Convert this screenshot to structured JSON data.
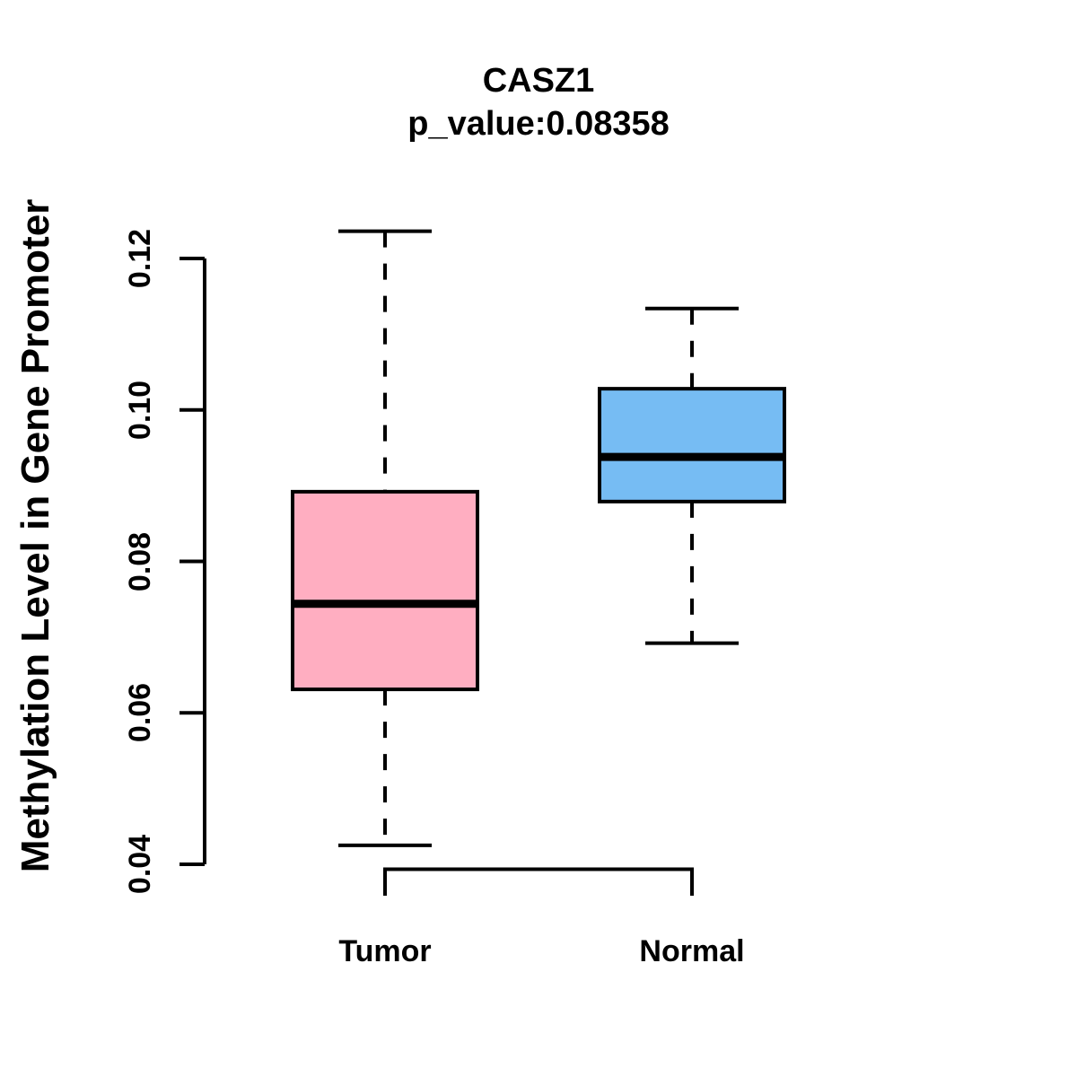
{
  "chart_data": {
    "type": "boxplot",
    "title": "CASZ1",
    "subtitle": "p_value:0.08358",
    "ylabel": "Methylation Level in Gene Promoter",
    "xlabel": "",
    "ylim": [
      0.04,
      0.12
    ],
    "yticks": [
      0.04,
      0.06,
      0.08,
      0.1,
      0.12
    ],
    "ytick_labels": [
      "0.04",
      "0.06",
      "0.08",
      "0.10",
      "0.12"
    ],
    "categories": [
      "Tumor",
      "Normal"
    ],
    "series": [
      {
        "name": "Tumor",
        "fill": "#FFAEC1",
        "whisker_low": 0.0425,
        "q1": 0.0631,
        "median": 0.0744,
        "q3": 0.0892,
        "whisker_high": 0.1236
      },
      {
        "name": "Normal",
        "fill": "#76BCF3",
        "whisker_low": 0.0692,
        "q1": 0.0879,
        "median": 0.0938,
        "q3": 0.1028,
        "whisker_high": 0.1134
      }
    ],
    "grid": false,
    "legend": null,
    "colors": {
      "line": "#000000",
      "background": "#FFFFFF"
    },
    "whisker_style": "dashed"
  }
}
